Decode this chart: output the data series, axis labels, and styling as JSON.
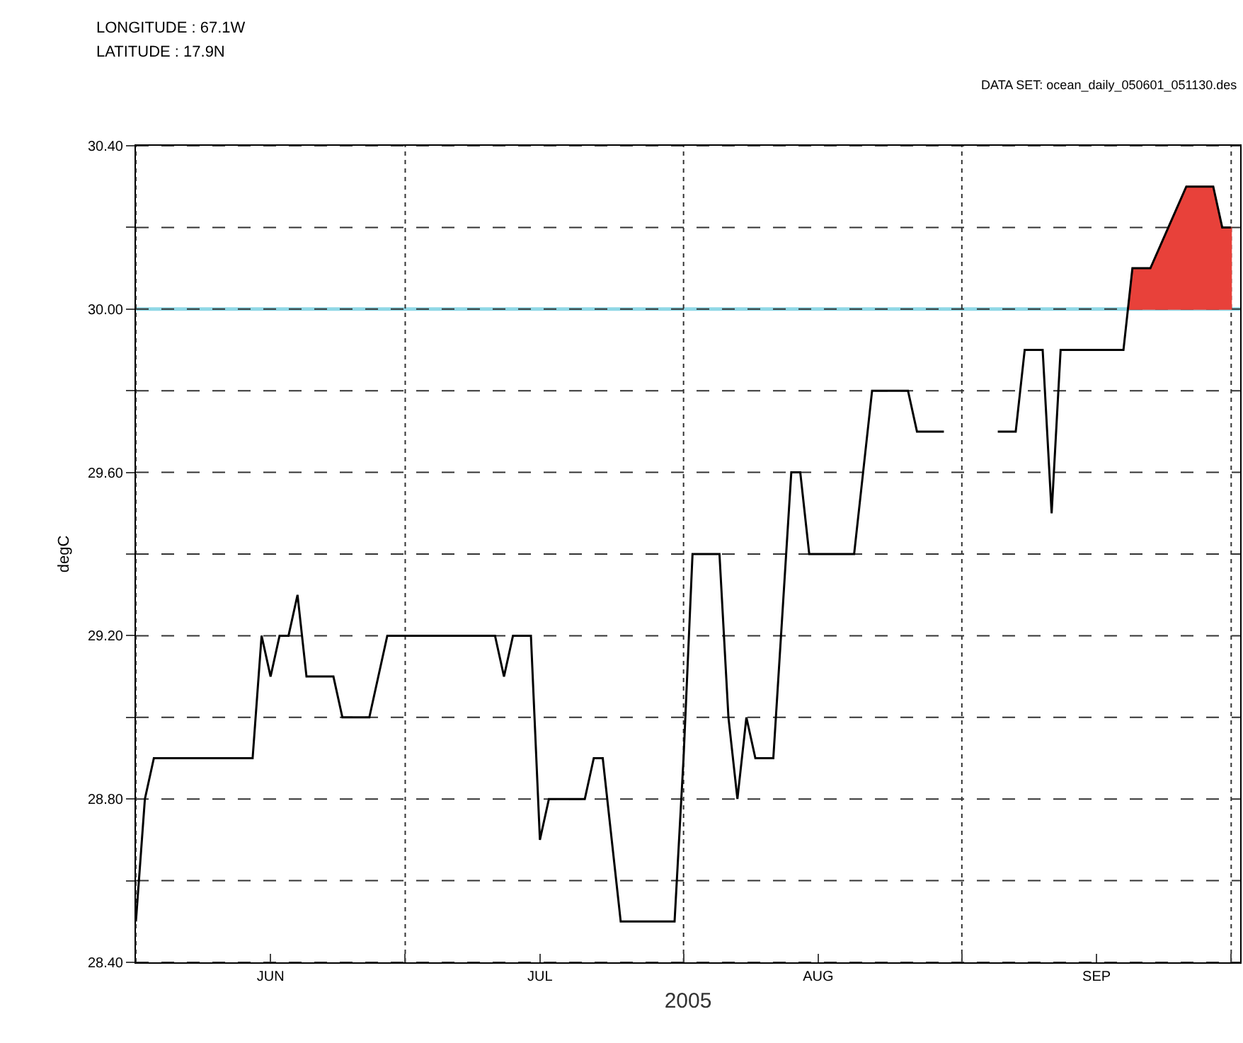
{
  "chart_data": {
    "type": "line",
    "xlabel": "2005",
    "ylabel": "degC",
    "annotations": [
      "LONGITUDE : 67.1W",
      "LATITUDE : 17.9N",
      "DATA SET: ocean_daily_050601_051130.des"
    ],
    "series": [
      {
        "type": "line",
        "color": "#000000",
        "x": [
          "2005-06-01",
          "2005-06-02",
          "2005-06-03",
          "2005-06-14",
          "2005-06-15",
          "2005-06-16",
          "2005-06-17",
          "2005-06-18",
          "2005-06-19",
          "2005-06-20",
          "2005-06-23",
          "2005-06-24",
          "2005-06-27",
          "2005-06-29",
          "2005-07-11",
          "2005-07-12",
          "2005-07-13",
          "2005-07-15",
          "2005-07-16",
          "2005-07-17",
          "2005-07-21",
          "2005-07-22",
          "2005-07-23",
          "2005-07-25",
          "2005-07-31",
          "2005-08-01",
          "2005-08-02",
          "2005-08-05",
          "2005-08-06",
          "2005-08-07",
          "2005-08-08",
          "2005-08-09",
          "2005-08-11",
          "2005-08-13",
          "2005-08-14",
          "2005-08-15",
          "2005-08-20",
          "2005-08-22",
          "2005-08-26",
          "2005-08-27",
          "2005-08-30",
          "2005-09-02",
          "2005-09-05",
          "2005-09-07",
          "2005-09-08",
          "2005-09-10",
          "2005-09-11",
          "2005-09-12",
          "2005-09-19",
          "2005-09-20",
          "2005-09-22",
          "2005-09-24",
          "2005-09-26",
          "2005-09-29",
          "2005-09-30",
          "2005-10-01"
        ],
        "values": [
          28.5,
          28.8,
          28.9,
          28.9,
          29.2,
          29.1,
          29.2,
          29.2,
          29.3,
          29.1,
          29.1,
          29.0,
          29.0,
          29.2,
          29.2,
          29.1,
          29.2,
          29.2,
          28.7,
          28.8,
          28.8,
          28.9,
          28.9,
          28.5,
          28.5,
          28.9,
          29.4,
          29.4,
          29.0,
          28.8,
          29.0,
          28.9,
          28.9,
          29.6,
          29.6,
          29.4,
          29.4,
          29.8,
          29.8,
          29.7,
          29.7,
          null,
          29.7,
          29.7,
          29.9,
          29.9,
          29.5,
          29.9,
          29.9,
          30.1,
          30.1,
          30.2,
          30.3,
          30.3,
          30.2,
          30.2
        ]
      },
      {
        "type": "area",
        "color": "#e8413a",
        "x": [
          "2005-09-19T12:00",
          "2005-09-20",
          "2005-09-22",
          "2005-09-24",
          "2005-09-26",
          "2005-09-29",
          "2005-09-30",
          "2005-10-01"
        ],
        "values": [
          30.0,
          30.1,
          30.1,
          30.2,
          30.3,
          30.3,
          30.2,
          30.2
        ]
      }
    ],
    "ref_lines": [
      {
        "axis": "y",
        "value": 30.0,
        "color": "#8fd8e6"
      }
    ],
    "xlim": [
      "2005-06-01",
      "2005-10-02"
    ],
    "xticks": [
      {
        "value": "2005-06-01",
        "label": null
      },
      {
        "value": "2005-06-16",
        "label": "JUN"
      },
      {
        "value": "2005-07-01",
        "label": null
      },
      {
        "value": "2005-07-16",
        "label": "JUL"
      },
      {
        "value": "2005-08-01",
        "label": null
      },
      {
        "value": "2005-08-16",
        "label": "AUG"
      },
      {
        "value": "2005-09-01",
        "label": null
      },
      {
        "value": "2005-09-16",
        "label": "SEP"
      },
      {
        "value": "2005-10-01",
        "label": null
      }
    ],
    "ylim": [
      28.4,
      30.4
    ],
    "yticks": [
      {
        "value": 28.4,
        "label": "28.40"
      },
      {
        "value": 28.6,
        "label": null
      },
      {
        "value": 28.8,
        "label": "28.80"
      },
      {
        "value": 29.0,
        "label": null
      },
      {
        "value": 29.2,
        "label": "29.20"
      },
      {
        "value": 29.4,
        "label": null
      },
      {
        "value": 29.6,
        "label": "29.60"
      },
      {
        "value": 29.8,
        "label": null
      },
      {
        "value": 30.0,
        "label": "30.00"
      },
      {
        "value": 30.2,
        "label": null
      },
      {
        "value": 30.4,
        "label": "30.40"
      }
    ],
    "grid": true,
    "line_style": "solid"
  }
}
